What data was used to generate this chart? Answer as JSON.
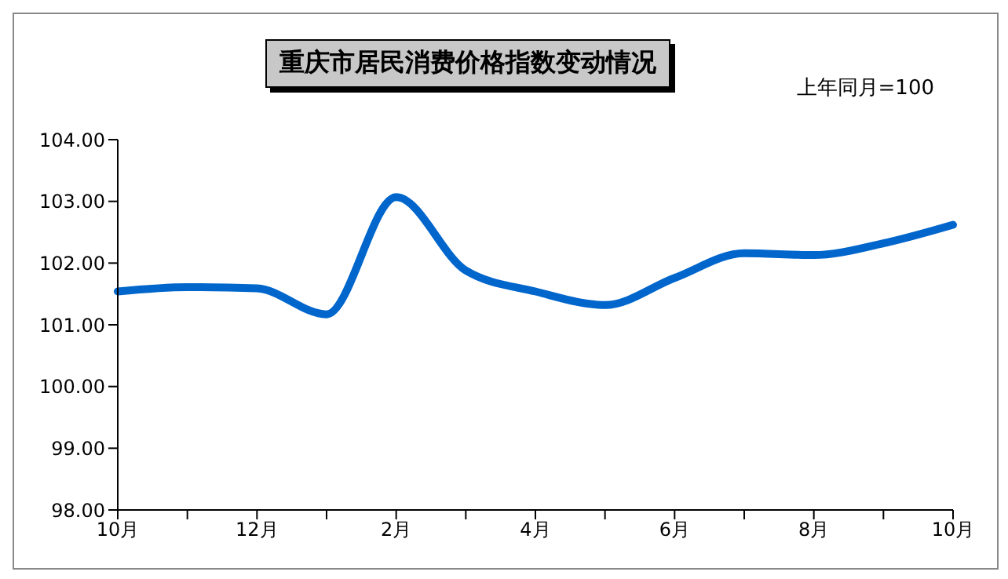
{
  "chart_data": {
    "type": "line",
    "title": "重庆市居民消费价格指数变动情况",
    "annotations": [
      "上年同月=100"
    ],
    "categories": [
      "10月",
      null,
      "12月",
      null,
      "2月",
      null,
      "4月",
      null,
      "6月",
      null,
      "8月",
      null,
      "10月"
    ],
    "series": [
      {
        "color": "#0066cc",
        "values": [
          101.54,
          101.61,
          101.59,
          101.17,
          103.07,
          101.88,
          101.54,
          101.32,
          101.76,
          102.16,
          102.13,
          102.32,
          102.62
        ]
      }
    ],
    "ylim": [
      98,
      104
    ],
    "yticks": [
      {
        "value": 98,
        "label": "98.00"
      },
      {
        "value": 99,
        "label": "99.00"
      },
      {
        "value": 100,
        "label": "100.00"
      },
      {
        "value": 101,
        "label": "101.00"
      },
      {
        "value": 102,
        "label": "102.00"
      },
      {
        "value": 103,
        "label": "103.00"
      },
      {
        "value": 104,
        "label": "104.00"
      }
    ],
    "grid": false,
    "legend": false,
    "marker": "none",
    "line_style": "solid"
  }
}
